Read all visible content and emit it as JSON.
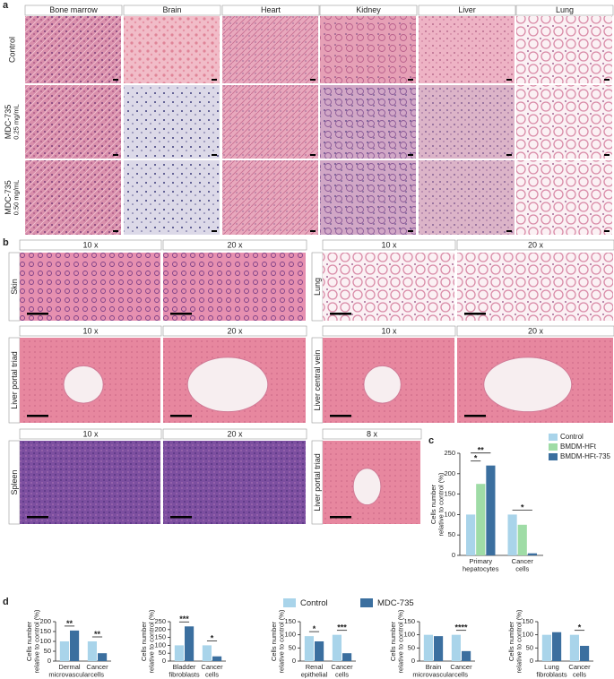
{
  "panel_a": {
    "label": "a",
    "columns": [
      "Bone marrow",
      "Brain",
      "Heart",
      "Kidney",
      "Liver",
      "Lung"
    ],
    "rows": [
      [
        "Control"
      ],
      [
        "MDC-735",
        "0.25 mg/mL"
      ],
      [
        "MDC-735",
        "0.50 mg/mL"
      ]
    ]
  },
  "panel_b": {
    "label": "b",
    "groups": [
      {
        "tissue": "Skin",
        "magnifications": [
          "10 x",
          "20 x"
        ]
      },
      {
        "tissue": "Lung",
        "magnifications": [
          "10 x",
          "20 x"
        ]
      },
      {
        "tissue": "Liver portal triad",
        "magnifications": [
          "10 x",
          "20 x"
        ]
      },
      {
        "tissue": "Liver central vein",
        "magnifications": [
          "10 x",
          "20 x"
        ]
      },
      {
        "tissue": "Spleen",
        "magnifications": [
          "10 x",
          "20 x"
        ]
      },
      {
        "tissue": "Liver portal triad",
        "magnifications": [
          "8 x"
        ]
      }
    ]
  },
  "panel_d": {
    "label": "d",
    "legend": [
      {
        "name": "Control",
        "color": "#a9d4ea"
      },
      {
        "name": "MDC-735",
        "color": "#3b6f9f"
      }
    ]
  },
  "chart_data": [
    {
      "type": "bar",
      "panel_label": "c",
      "ylabel": [
        "Cells number",
        "relative to control (%)"
      ],
      "categories": [
        [
          "Primary",
          "hepatocytes"
        ],
        [
          "Cancer",
          "cells"
        ]
      ],
      "series": [
        {
          "name": "Control",
          "color": "#a9d4ea",
          "values": [
            100,
            100
          ]
        },
        {
          "name": "BMDM-HFt",
          "color": "#9fdca6",
          "values": [
            175,
            75
          ]
        },
        {
          "name": "BMDM-HFt-735",
          "color": "#3b6f9f",
          "values": [
            220,
            5
          ]
        }
      ],
      "ylim": [
        0,
        250
      ],
      "yticks": [
        0,
        50,
        100,
        150,
        200,
        250
      ],
      "significance": [
        [
          "*",
          "**"
        ],
        [
          "*"
        ]
      ],
      "legend": "upper right"
    },
    {
      "type": "bar",
      "ylabel": [
        "Cells number",
        "relative to control (%)"
      ],
      "categories": [
        [
          "Dermal",
          "microvascular",
          "cells"
        ],
        [
          "Cancer",
          "cells"
        ]
      ],
      "series": [
        {
          "values": [
            100,
            100
          ]
        },
        {
          "values": [
            155,
            40
          ]
        }
      ],
      "ylim": [
        0,
        200
      ],
      "yticks": [
        0,
        50,
        100,
        150,
        200
      ],
      "significance": [
        [
          "**"
        ],
        [
          "**"
        ]
      ]
    },
    {
      "type": "bar",
      "ylabel": [
        "Cells number",
        "relative to control (%)"
      ],
      "categories": [
        [
          "Bladder",
          "fibroblasts"
        ],
        [
          "Cancer",
          "cells"
        ]
      ],
      "series": [
        {
          "values": [
            100,
            100
          ]
        },
        {
          "values": [
            220,
            30
          ]
        }
      ],
      "ylim": [
        0,
        250
      ],
      "yticks": [
        0,
        50,
        100,
        150,
        200,
        250
      ],
      "significance": [
        [
          "***"
        ],
        [
          "*"
        ]
      ]
    },
    {
      "type": "bar",
      "ylabel": [
        "Cells number",
        "relative to control (%)"
      ],
      "categories": [
        [
          "Renal",
          "epithelial",
          "cells"
        ],
        [
          "Cancer",
          "cells"
        ]
      ],
      "series": [
        {
          "values": [
            95,
            100
          ]
        },
        {
          "values": [
            75,
            30
          ]
        }
      ],
      "ylim": [
        0,
        150
      ],
      "yticks": [
        0,
        50,
        100,
        150
      ],
      "significance": [
        [
          "*"
        ],
        [
          "***"
        ]
      ]
    },
    {
      "type": "bar",
      "ylabel": [
        "Cells number",
        "relative to control (%)"
      ],
      "categories": [
        [
          "Brain",
          "microvascular",
          "cells"
        ],
        [
          "Cancer",
          "cells"
        ]
      ],
      "series": [
        {
          "values": [
            100,
            100
          ]
        },
        {
          "values": [
            95,
            38
          ]
        }
      ],
      "ylim": [
        0,
        150
      ],
      "yticks": [
        0,
        50,
        100,
        150
      ],
      "significance": [
        [],
        [
          "****"
        ]
      ]
    },
    {
      "type": "bar",
      "ylabel": [
        "Cells number",
        "relative to control (%)"
      ],
      "categories": [
        [
          "Lung",
          "fibroblasts"
        ],
        [
          "Cancer",
          "cells"
        ]
      ],
      "series": [
        {
          "values": [
            100,
            100
          ]
        },
        {
          "values": [
            110,
            58
          ]
        }
      ],
      "ylim": [
        0,
        150
      ],
      "yticks": [
        0,
        50,
        100,
        150
      ],
      "significance": [
        [],
        [
          "*"
        ]
      ]
    }
  ]
}
